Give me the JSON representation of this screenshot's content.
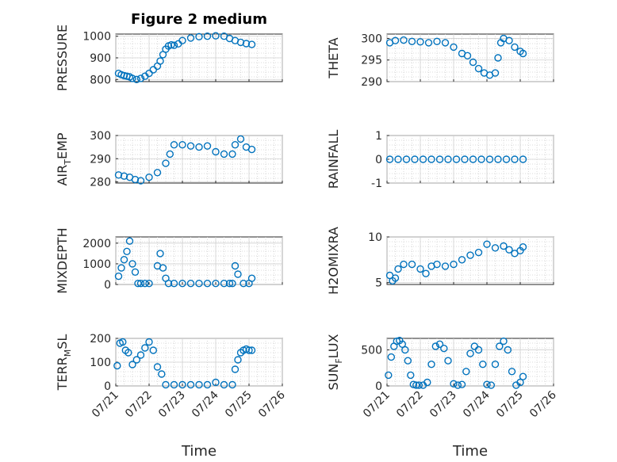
{
  "figure": {
    "title": "Figure 2 medium"
  },
  "chart_data": [
    {
      "type": "scatter",
      "ylabel": "PRESSURE",
      "ylabel_sub": "",
      "ylabel_suffix": "",
      "ylim": [
        790,
        1010
      ],
      "yticks": [
        800,
        900,
        1000
      ],
      "x": [
        "07/21 02:00",
        "07/21 04:00",
        "07/21 06:00",
        "07/21 08:00",
        "07/21 10:00",
        "07/21 12:00",
        "07/21 15:00",
        "07/21 18:00",
        "07/21 21:00",
        "07/22 00:00",
        "07/22 03:00",
        "07/22 06:00",
        "07/22 08:00",
        "07/22 10:00",
        "07/22 12:00",
        "07/22 14:00",
        "07/22 16:00",
        "07/22 18:00",
        "07/22 21:00",
        "07/23 00:00",
        "07/23 06:00",
        "07/23 12:00",
        "07/23 18:00",
        "07/24 00:00",
        "07/24 06:00",
        "07/24 10:00",
        "07/24 14:00",
        "07/24 18:00",
        "07/24 22:00",
        "07/25 02:00"
      ],
      "values": [
        828,
        822,
        818,
        815,
        812,
        805,
        800,
        805,
        815,
        828,
        845,
        862,
        885,
        915,
        940,
        955,
        960,
        958,
        965,
        980,
        992,
        998,
        1000,
        1002,
        1000,
        990,
        980,
        972,
        966,
        962
      ]
    },
    {
      "type": "scatter",
      "ylabel": "THETA",
      "ylabel_sub": "",
      "ylabel_suffix": "",
      "ylim": [
        290,
        301
      ],
      "yticks": [
        290,
        295,
        300
      ],
      "x": [
        "07/21 02:00",
        "07/21 06:00",
        "07/21 12:00",
        "07/21 18:00",
        "07/22 00:00",
        "07/22 06:00",
        "07/22 12:00",
        "07/22 18:00",
        "07/23 00:00",
        "07/23 06:00",
        "07/23 10:00",
        "07/23 14:00",
        "07/23 18:00",
        "07/23 22:00",
        "07/24 02:00",
        "07/24 06:00",
        "07/24 08:00",
        "07/24 10:00",
        "07/24 12:00",
        "07/24 16:00",
        "07/24 20:00",
        "07/25 00:00",
        "07/25 02:00"
      ],
      "values": [
        299,
        299.5,
        299.6,
        299.3,
        299.2,
        299,
        299.3,
        299,
        298,
        296.5,
        296,
        294.5,
        293,
        292,
        291.5,
        292,
        295.5,
        299,
        300,
        299.5,
        298,
        297,
        296.5
      ]
    },
    {
      "type": "scatter",
      "ylabel": "AIR",
      "ylabel_sub": "T",
      "ylabel_suffix": "EMP",
      "ylim": [
        279.5,
        300
      ],
      "yticks": [
        280,
        290,
        300
      ],
      "x": [
        "07/21 02:00",
        "07/21 06:00",
        "07/21 10:00",
        "07/21 14:00",
        "07/21 18:00",
        "07/22 00:00",
        "07/22 06:00",
        "07/22 12:00",
        "07/22 15:00",
        "07/22 18:00",
        "07/23 00:00",
        "07/23 06:00",
        "07/23 12:00",
        "07/23 18:00",
        "07/24 00:00",
        "07/24 06:00",
        "07/24 12:00",
        "07/24 14:00",
        "07/24 18:00",
        "07/24 22:00",
        "07/25 02:00"
      ],
      "values": [
        283,
        282.5,
        282,
        281,
        280.5,
        282,
        284,
        288,
        292,
        296,
        296,
        295.5,
        295,
        295.5,
        293,
        292,
        292,
        296,
        298.5,
        295,
        294
      ]
    },
    {
      "type": "scatter",
      "ylabel": "RAINFALL",
      "ylabel_sub": "",
      "ylabel_suffix": "",
      "ylim": [
        -1,
        1
      ],
      "yticks": [
        -1,
        0,
        1
      ],
      "x": [
        "07/21 02:00",
        "07/21 08:00",
        "07/21 14:00",
        "07/21 20:00",
        "07/22 02:00",
        "07/22 08:00",
        "07/22 14:00",
        "07/22 20:00",
        "07/23 02:00",
        "07/23 08:00",
        "07/23 14:00",
        "07/23 20:00",
        "07/24 02:00",
        "07/24 08:00",
        "07/24 14:00",
        "07/24 20:00",
        "07/25 02:00"
      ],
      "values": [
        0,
        0,
        0,
        0,
        0,
        0,
        0,
        0,
        0,
        0,
        0,
        0,
        0,
        0,
        0,
        0,
        0
      ]
    },
    {
      "type": "scatter",
      "ylabel": "MIXDEPTH",
      "ylabel_sub": "",
      "ylabel_suffix": "",
      "ylim": [
        0,
        2300
      ],
      "yticks": [
        0,
        1000,
        2000
      ],
      "x": [
        "07/21 02:00",
        "07/21 04:00",
        "07/21 06:00",
        "07/21 08:00",
        "07/21 10:00",
        "07/21 12:00",
        "07/21 14:00",
        "07/21 16:00",
        "07/21 18:00",
        "07/21 21:00",
        "07/22 00:00",
        "07/22 06:00",
        "07/22 08:00",
        "07/22 10:00",
        "07/22 12:00",
        "07/22 14:00",
        "07/22 18:00",
        "07/23 00:00",
        "07/23 06:00",
        "07/23 12:00",
        "07/23 18:00",
        "07/24 00:00",
        "07/24 06:00",
        "07/24 10:00",
        "07/24 12:00",
        "07/24 14:00",
        "07/24 16:00",
        "07/24 20:00",
        "07/25 00:00",
        "07/25 02:00"
      ],
      "values": [
        400,
        800,
        1200,
        1600,
        2100,
        1000,
        600,
        50,
        50,
        50,
        50,
        900,
        1500,
        800,
        300,
        50,
        50,
        50,
        50,
        50,
        50,
        50,
        50,
        50,
        50,
        900,
        500,
        50,
        50,
        300
      ]
    },
    {
      "type": "scatter",
      "ylabel": "H2OMIXRA",
      "ylabel_sub": "",
      "ylabel_suffix": "",
      "ylim": [
        4.8,
        10
      ],
      "yticks": [
        5,
        10
      ],
      "x": [
        "07/21 02:00",
        "07/21 04:00",
        "07/21 06:00",
        "07/21 08:00",
        "07/21 12:00",
        "07/21 18:00",
        "07/22 00:00",
        "07/22 04:00",
        "07/22 08:00",
        "07/22 12:00",
        "07/22 18:00",
        "07/23 00:00",
        "07/23 06:00",
        "07/23 12:00",
        "07/23 18:00",
        "07/24 00:00",
        "07/24 06:00",
        "07/24 12:00",
        "07/24 16:00",
        "07/24 20:00",
        "07/25 00:00",
        "07/25 02:00"
      ],
      "values": [
        5.8,
        5.2,
        5.5,
        6.5,
        7,
        7,
        6.5,
        6,
        6.8,
        7,
        6.8,
        7,
        7.5,
        8,
        8.3,
        9.2,
        8.8,
        9,
        8.6,
        8.2,
        8.5,
        8.9
      ]
    },
    {
      "type": "scatter",
      "ylabel": "TERR",
      "ylabel_sub": "M",
      "ylabel_suffix": "SL",
      "ylim": [
        0,
        200
      ],
      "yticks": [
        0,
        100,
        200
      ],
      "x": [
        "07/21 01:00",
        "07/21 03:00",
        "07/21 05:00",
        "07/21 07:00",
        "07/21 09:00",
        "07/21 12:00",
        "07/21 15:00",
        "07/21 18:00",
        "07/21 21:00",
        "07/22 00:00",
        "07/22 03:00",
        "07/22 06:00",
        "07/22 09:00",
        "07/22 12:00",
        "07/22 18:00",
        "07/23 00:00",
        "07/23 06:00",
        "07/23 12:00",
        "07/23 18:00",
        "07/24 00:00",
        "07/24 06:00",
        "07/24 12:00",
        "07/24 14:00",
        "07/24 16:00",
        "07/24 18:00",
        "07/24 20:00",
        "07/24 22:00",
        "07/25 00:00",
        "07/25 02:00"
      ],
      "values": [
        85,
        180,
        185,
        150,
        140,
        90,
        110,
        130,
        160,
        185,
        150,
        80,
        50,
        5,
        5,
        5,
        5,
        5,
        5,
        15,
        5,
        5,
        70,
        110,
        140,
        150,
        155,
        150,
        150
      ]
    },
    {
      "type": "scatter",
      "ylabel": "SUN",
      "ylabel_sub": "F",
      "ylabel_suffix": "LUX",
      "ylim": [
        0,
        660
      ],
      "yticks": [
        0,
        500
      ],
      "x": [
        "07/21 01:00",
        "07/21 03:00",
        "07/21 05:00",
        "07/21 07:00",
        "07/21 09:00",
        "07/21 11:00",
        "07/21 13:00",
        "07/21 15:00",
        "07/21 17:00",
        "07/21 19:00",
        "07/21 21:00",
        "07/21 23:00",
        "07/22 02:00",
        "07/22 05:00",
        "07/22 08:00",
        "07/22 11:00",
        "07/22 14:00",
        "07/22 17:00",
        "07/22 20:00",
        "07/23 00:00",
        "07/23 03:00",
        "07/23 06:00",
        "07/23 09:00",
        "07/23 12:00",
        "07/23 15:00",
        "07/23 18:00",
        "07/23 21:00",
        "07/24 00:00",
        "07/24 03:00",
        "07/24 06:00",
        "07/24 09:00",
        "07/24 12:00",
        "07/24 15:00",
        "07/24 18:00",
        "07/24 21:00",
        "07/25 00:00",
        "07/25 02:00"
      ],
      "values": [
        150,
        400,
        550,
        620,
        630,
        580,
        500,
        350,
        150,
        20,
        10,
        10,
        10,
        50,
        300,
        550,
        580,
        520,
        350,
        30,
        10,
        20,
        200,
        450,
        550,
        500,
        300,
        20,
        10,
        300,
        550,
        620,
        500,
        200,
        10,
        50,
        130
      ]
    }
  ],
  "x_axis": {
    "ticks": [
      "07/21",
      "07/22",
      "07/23",
      "07/24",
      "07/25",
      "07/26"
    ],
    "label": "Time"
  }
}
